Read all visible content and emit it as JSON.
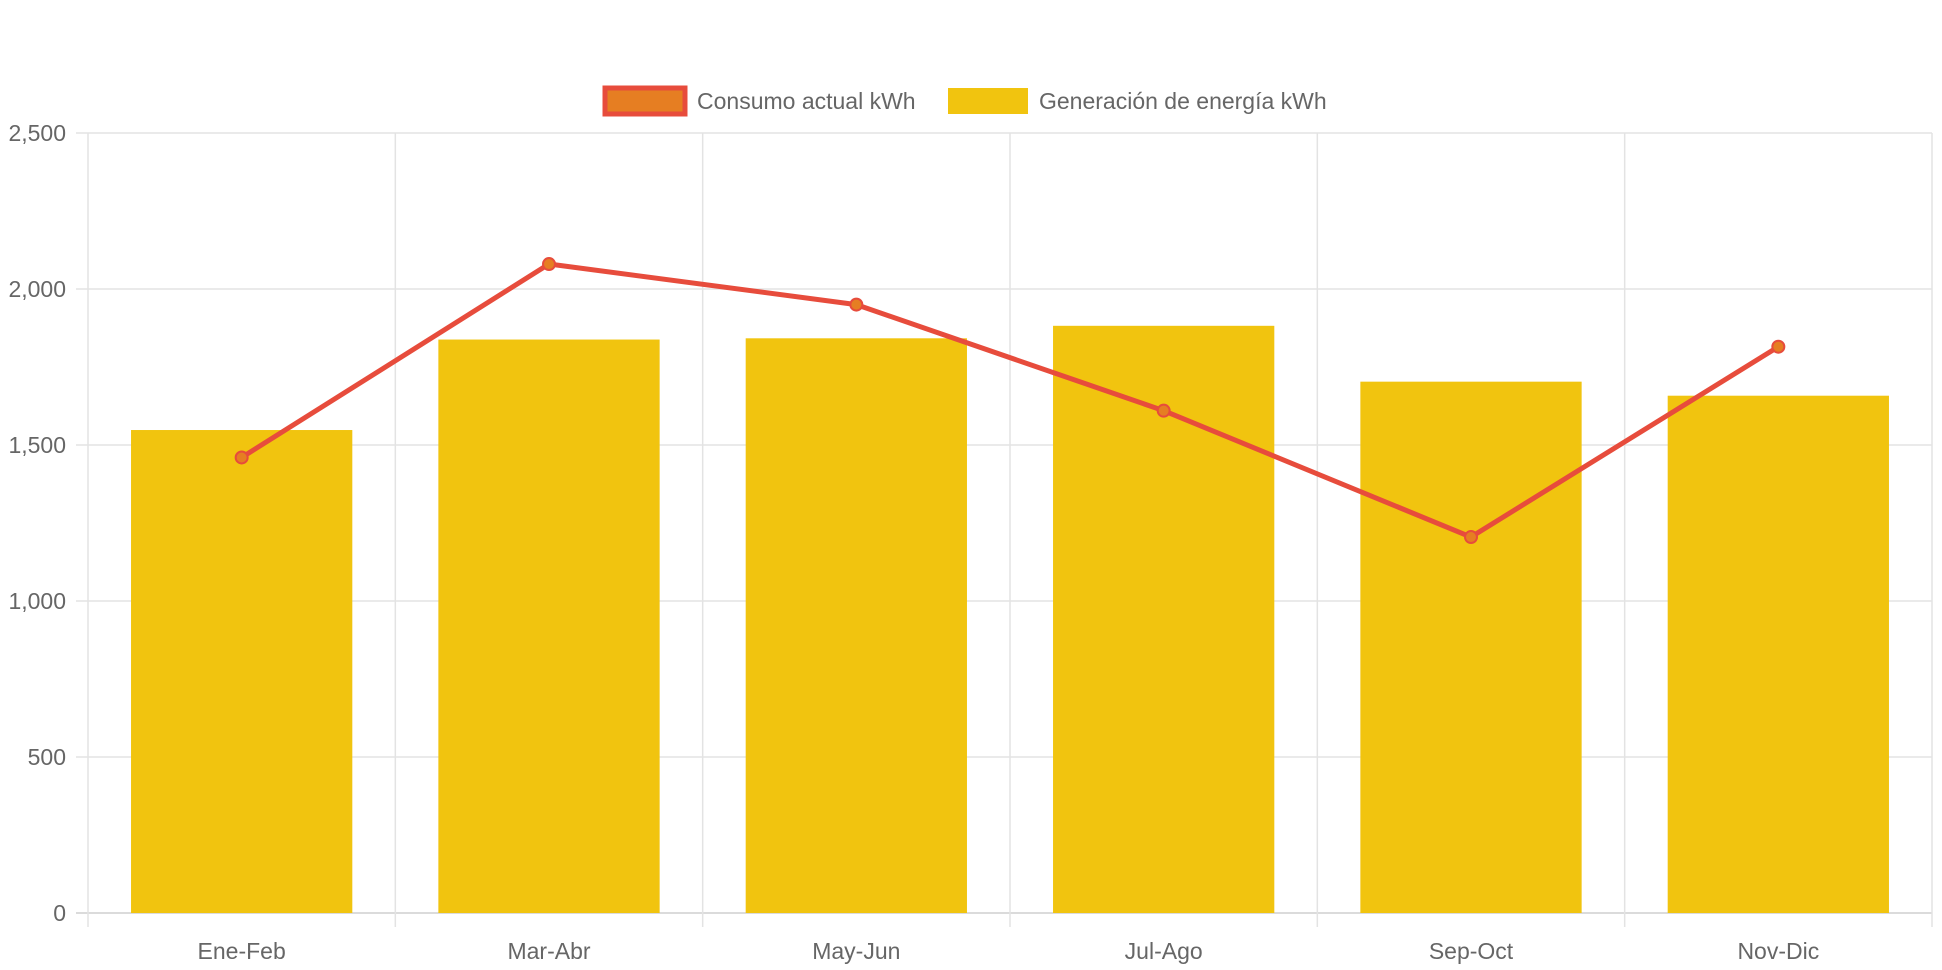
{
  "chart_data": {
    "type": "bar",
    "categories": [
      "Ene-Feb",
      "Mar-Abr",
      "May-Jun",
      "Jul-Ago",
      "Sep-Oct",
      "Nov-Dic"
    ],
    "series": [
      {
        "name": "Consumo actual kWh",
        "type": "line",
        "values": [
          1460,
          2080,
          1950,
          1610,
          1205,
          1815
        ],
        "color": "#e74c3c",
        "point_color": "#e67e22"
      },
      {
        "name": "Generación de energía kWh",
        "type": "bar",
        "values": [
          1548,
          1838,
          1842,
          1882,
          1703,
          1658
        ],
        "color": "#f1c40f"
      }
    ],
    "ylim": [
      0,
      2500
    ],
    "yticks": [
      "0",
      "500",
      "1,000",
      "1,500",
      "2,000",
      "2,500"
    ],
    "ytick_values": [
      0,
      500,
      1000,
      1500,
      2000,
      2500
    ],
    "grid": true,
    "legend_position": "top",
    "title": "",
    "xlabel": "",
    "ylabel": ""
  }
}
